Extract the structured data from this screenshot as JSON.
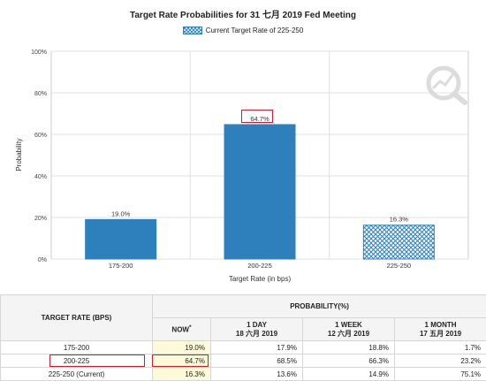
{
  "chart_data": {
    "type": "bar",
    "title": "Target Rate Probabilities for 31 七月 2019 Fed Meeting",
    "legend": {
      "label": "Current Target Rate of 225-250",
      "placement": "top-center"
    },
    "xlabel": "Target Rate (in bps)",
    "ylabel": "Probability",
    "ylim": [
      0,
      100
    ],
    "yticks": [
      "0%",
      "20%",
      "40%",
      "60%",
      "80%",
      "100%"
    ],
    "categories": [
      "175-200",
      "200-225",
      "225-250"
    ],
    "values": [
      19.0,
      64.7,
      16.3
    ],
    "value_labels": [
      "19.0%",
      "64.7%",
      "16.3%"
    ],
    "highlighted_category": "225-250",
    "colors": {
      "bar": "#2e80bd",
      "highlight_bar": "#2e80bd",
      "highlight_bg": "#ffffff",
      "annotation": "#cc1e2e"
    },
    "grid": true
  },
  "table": {
    "target_rate_header": "TARGET RATE (BPS)",
    "probability_header": "PROBABILITY(%)",
    "columns": [
      {
        "label": "NOW",
        "sup": "*",
        "date": ""
      },
      {
        "label": "1 DAY",
        "date": "18 六月 2019"
      },
      {
        "label": "1 WEEK",
        "date": "12 六月 2019"
      },
      {
        "label": "1 MONTH",
        "date": "17 五月 2019"
      }
    ],
    "rows": [
      {
        "rate": "175-200",
        "values": [
          "19.0%",
          "17.9%",
          "18.8%",
          "1.7%"
        ]
      },
      {
        "rate": "200-225",
        "values": [
          "64.7%",
          "68.5%",
          "66.3%",
          "23.2%"
        ]
      },
      {
        "rate": "225-250 (Current)",
        "values": [
          "16.3%",
          "13.6%",
          "14.9%",
          "75.1%"
        ]
      }
    ]
  },
  "watermark_icon": "magnifier-chart-icon"
}
